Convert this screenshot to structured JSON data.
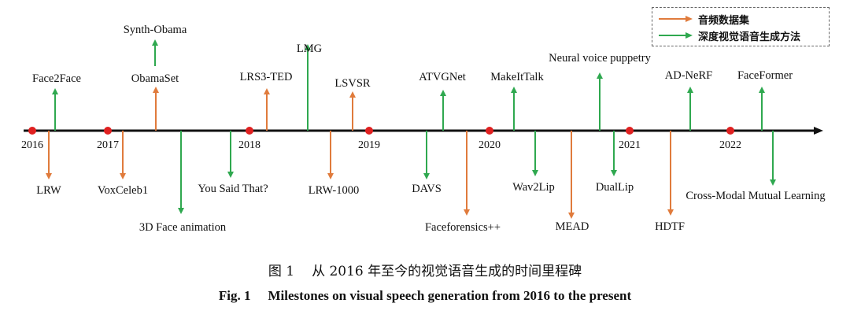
{
  "colors": {
    "dataset": "#e07b3c",
    "method": "#2fa84f",
    "year_dot": "#e02020",
    "axis": "#111111"
  },
  "legend": {
    "dataset_label": "音频数据集",
    "method_label": "深度视觉语音生成方法"
  },
  "years": [
    "2016",
    "2017",
    "2018",
    "2019",
    "2020",
    "2021",
    "2022"
  ],
  "milestones": [
    {
      "label": "Face2Face",
      "type": "method",
      "side": "up"
    },
    {
      "label": "LRW",
      "type": "dataset",
      "side": "down"
    },
    {
      "label": "VoxCeleb1",
      "type": "dataset",
      "side": "down"
    },
    {
      "label": "ObamaSet",
      "type": "dataset",
      "side": "up"
    },
    {
      "label": "Synth-Obama",
      "type": "method",
      "side": "up"
    },
    {
      "label": "3D Face animation",
      "type": "method",
      "side": "down"
    },
    {
      "label": "You Said That?",
      "type": "method",
      "side": "down"
    },
    {
      "label": "LRS3-TED",
      "type": "dataset",
      "side": "up"
    },
    {
      "label": "LMG",
      "type": "method",
      "side": "up"
    },
    {
      "label": "LRW-1000",
      "type": "dataset",
      "side": "down"
    },
    {
      "label": "LSVSR",
      "type": "dataset",
      "side": "up"
    },
    {
      "label": "DAVS",
      "type": "method",
      "side": "down"
    },
    {
      "label": "ATVGNet",
      "type": "method",
      "side": "up"
    },
    {
      "label": "Faceforensics++",
      "type": "dataset",
      "side": "down"
    },
    {
      "label": "MakeItTalk",
      "type": "method",
      "side": "up"
    },
    {
      "label": "Wav2Lip",
      "type": "method",
      "side": "down"
    },
    {
      "label": "MEAD",
      "type": "dataset",
      "side": "down"
    },
    {
      "label": "Neural voice puppetry",
      "type": "method",
      "side": "up"
    },
    {
      "label": "DualLip",
      "type": "method",
      "side": "down"
    },
    {
      "label": "HDTF",
      "type": "dataset",
      "side": "down"
    },
    {
      "label": "AD-NeRF",
      "type": "method",
      "side": "up"
    },
    {
      "label": "FaceFormer",
      "type": "method",
      "side": "up"
    },
    {
      "label": "Cross-Modal Mutual Learning",
      "type": "method",
      "side": "down"
    }
  ],
  "caption": {
    "cn_num": "图 1",
    "cn_text": "从 2016 年至今的视觉语音生成的时间里程碑",
    "en_num": "Fig. 1",
    "en_text": "Milestones on visual speech generation from 2016 to the present"
  }
}
